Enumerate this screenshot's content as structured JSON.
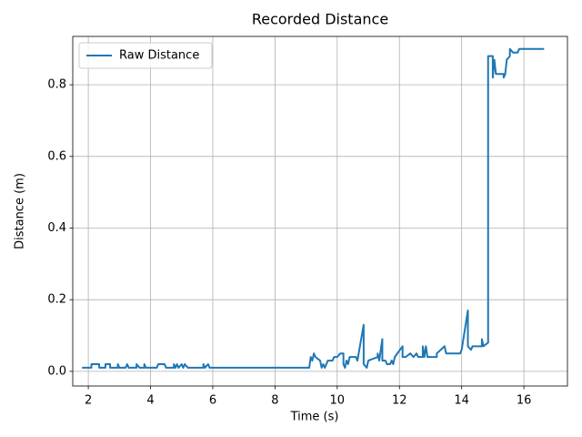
{
  "chart_data": {
    "type": "line",
    "title": "Recorded Distance",
    "x_label": "Time (s)",
    "y_label": "Distance (m)",
    "x": [
      1.8,
      2.1,
      2.1,
      2.35,
      2.35,
      2.55,
      2.55,
      2.7,
      2.7,
      2.95,
      2.95,
      3.0,
      3.2,
      3.25,
      3.3,
      3.55,
      3.55,
      3.65,
      3.8,
      3.8,
      3.85,
      4.2,
      4.25,
      4.45,
      4.5,
      4.75,
      4.75,
      4.8,
      4.85,
      4.9,
      5.0,
      5.05,
      5.1,
      5.2,
      5.7,
      5.7,
      5.75,
      5.85,
      5.9,
      9.1,
      9.15,
      9.2,
      9.25,
      9.3,
      9.45,
      9.5,
      9.55,
      9.6,
      9.7,
      9.85,
      9.9,
      10.0,
      10.1,
      10.2,
      10.2,
      10.25,
      10.3,
      10.35,
      10.4,
      10.6,
      10.65,
      10.85,
      10.85,
      10.95,
      11.0,
      11.3,
      11.3,
      11.35,
      11.45,
      11.45,
      11.55,
      11.6,
      11.7,
      11.75,
      11.8,
      11.85,
      12.1,
      12.1,
      12.2,
      12.35,
      12.45,
      12.55,
      12.6,
      12.75,
      12.75,
      12.8,
      12.85,
      12.9,
      13.2,
      13.2,
      13.45,
      13.5,
      13.95,
      14.0,
      14.2,
      14.2,
      14.3,
      14.35,
      14.65,
      14.65,
      14.7,
      14.85,
      14.85,
      15.0,
      15.0,
      15.05,
      15.1,
      15.35,
      15.35,
      15.4,
      15.45,
      15.55,
      15.55,
      15.65,
      15.8,
      15.85,
      16.65
    ],
    "series": [
      {
        "name": "Raw Distance",
        "color": "#1f77b4",
        "values": [
          0.01,
          0.01,
          0.02,
          0.02,
          0.01,
          0.01,
          0.02,
          0.02,
          0.01,
          0.01,
          0.02,
          0.01,
          0.01,
          0.02,
          0.01,
          0.01,
          0.02,
          0.01,
          0.01,
          0.02,
          0.01,
          0.01,
          0.02,
          0.02,
          0.01,
          0.01,
          0.02,
          0.01,
          0.02,
          0.01,
          0.02,
          0.01,
          0.02,
          0.01,
          0.01,
          0.02,
          0.01,
          0.02,
          0.01,
          0.01,
          0.04,
          0.03,
          0.05,
          0.04,
          0.03,
          0.01,
          0.02,
          0.01,
          0.03,
          0.03,
          0.04,
          0.04,
          0.05,
          0.05,
          0.02,
          0.01,
          0.03,
          0.02,
          0.04,
          0.04,
          0.03,
          0.13,
          0.02,
          0.01,
          0.03,
          0.04,
          0.05,
          0.03,
          0.09,
          0.03,
          0.03,
          0.02,
          0.02,
          0.03,
          0.02,
          0.04,
          0.07,
          0.04,
          0.04,
          0.05,
          0.04,
          0.05,
          0.04,
          0.04,
          0.07,
          0.04,
          0.07,
          0.04,
          0.04,
          0.05,
          0.07,
          0.05,
          0.05,
          0.06,
          0.17,
          0.07,
          0.06,
          0.07,
          0.07,
          0.09,
          0.07,
          0.08,
          0.88,
          0.88,
          0.82,
          0.87,
          0.83,
          0.83,
          0.82,
          0.83,
          0.87,
          0.88,
          0.9,
          0.89,
          0.89,
          0.9,
          0.9
        ]
      }
    ],
    "xlim": [
      1.5,
      17.4
    ],
    "ylim": [
      -0.041,
      0.935
    ],
    "xticks": [
      2,
      4,
      6,
      8,
      10,
      12,
      14,
      16
    ],
    "yticks": [
      {
        "value": 0,
        "label": "0.0"
      },
      0.2,
      0.4,
      0.6,
      0.8
    ],
    "grid": true,
    "legend": "upper left"
  }
}
